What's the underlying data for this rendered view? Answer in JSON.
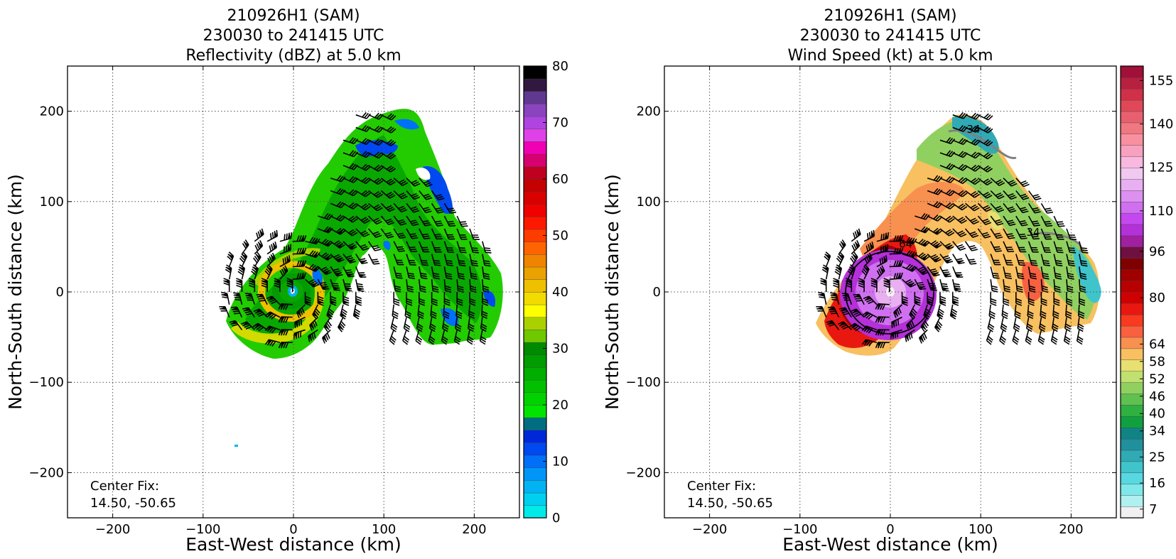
{
  "chart_data": [
    {
      "type": "heatmap",
      "title_lines": [
        "210926H1 (SAM)",
        "230030 to 241415 UTC",
        "Reflectivity (dBZ) at 5.0 km"
      ],
      "xlabel": "East-West distance (km)",
      "ylabel": "North-South distance (km)",
      "xlim": [
        -250,
        250
      ],
      "ylim": [
        -250,
        250
      ],
      "x_ticks": [
        -200,
        -100,
        0,
        100,
        200
      ],
      "y_ticks": [
        -200,
        -100,
        0,
        100,
        200
      ],
      "x_tick_labels": [
        "−200",
        "−100",
        "0",
        "100",
        "200"
      ],
      "y_tick_labels": [
        "−200",
        "−100",
        "0",
        "100",
        "200"
      ],
      "grid": true,
      "annotation_lines": [
        "Center Fix:",
        "14.50, -50.65"
      ],
      "colorbar": {
        "min": 0,
        "max": 80,
        "ticks": [
          0,
          10,
          20,
          30,
          40,
          50,
          60,
          70,
          80
        ],
        "tick_labels": [
          "0",
          "10",
          "20",
          "30",
          "40",
          "50",
          "60",
          "70",
          "80"
        ],
        "colors": [
          "#00eaea",
          "#00d0f0",
          "#00b4f4",
          "#0096f8",
          "#0070f8",
          "#0048f0",
          "#0028d8",
          "#006e80",
          "#00e400",
          "#00d200",
          "#00c000",
          "#00ae00",
          "#009c00",
          "#008a00",
          "#70c800",
          "#aad000",
          "#ffff00",
          "#f2dc00",
          "#eec000",
          "#eaa200",
          "#f08400",
          "#ff6400",
          "#ff3c00",
          "#ff1800",
          "#f00000",
          "#da0000",
          "#c40000",
          "#c00020",
          "#d80070",
          "#f000b4",
          "#e040e8",
          "#b044e0",
          "#8a44c0",
          "#603890",
          "#301840",
          "#000000"
        ]
      },
      "cells": [
        {
          "x": -70,
          "y": -35,
          "dbz": 24
        },
        {
          "x": -45,
          "y": -15,
          "dbz": 36
        },
        {
          "x": -30,
          "y": 10,
          "dbz": 33
        },
        {
          "x": 0,
          "y": 0,
          "dbz": 12
        },
        {
          "x": 25,
          "y": 40,
          "dbz": 24
        },
        {
          "x": 60,
          "y": 100,
          "dbz": 22
        },
        {
          "x": 80,
          "y": 150,
          "dbz": 24
        },
        {
          "x": 100,
          "y": 190,
          "dbz": 20
        },
        {
          "x": 130,
          "y": 80,
          "dbz": 22
        },
        {
          "x": 160,
          "y": 30,
          "dbz": 24
        },
        {
          "x": 200,
          "y": 0,
          "dbz": 22
        },
        {
          "x": -62,
          "y": -172,
          "dbz": 8
        }
      ]
    },
    {
      "type": "heatmap",
      "title_lines": [
        "210926H1 (SAM)",
        "230030 to 241415 UTC",
        "Wind Speed (kt) at 5.0 km"
      ],
      "xlabel": "East-West distance (km)",
      "ylabel": "North-South distance (km)",
      "xlim": [
        -250,
        250
      ],
      "ylim": [
        -250,
        250
      ],
      "x_ticks": [
        -200,
        -100,
        0,
        100,
        200
      ],
      "y_ticks": [
        -200,
        -100,
        0,
        100,
        200
      ],
      "x_tick_labels": [
        "−200",
        "−100",
        "0",
        "100",
        "200"
      ],
      "y_tick_labels": [
        "−200",
        "−100",
        "0",
        "100",
        "200"
      ],
      "grid": true,
      "annotation_lines": [
        "Center Fix:",
        "14.50, -50.65"
      ],
      "contour_labels": [
        {
          "x": 92,
          "y": 176,
          "text": "34"
        },
        {
          "x": 158,
          "y": 62,
          "text": "34"
        },
        {
          "x": 17,
          "y": 49,
          "text": "64"
        }
      ],
      "colorbar": {
        "min": 4,
        "max": 160,
        "ticks": [
          7,
          16,
          25,
          34,
          40,
          46,
          52,
          58,
          64,
          80,
          96,
          110,
          125,
          140,
          155
        ],
        "tick_labels": [
          "7",
          "16",
          "25",
          "34",
          "40",
          "46",
          "52",
          "58",
          "64",
          "80",
          "96",
          "110",
          "125",
          "140",
          "155"
        ],
        "colors": [
          "#f0f0f0",
          "#b0f0f0",
          "#80e8e8",
          "#58d8e0",
          "#40c4cc",
          "#30aab4",
          "#20909c",
          "#108484",
          "#10a040",
          "#30b040",
          "#60c050",
          "#90d060",
          "#c0e070",
          "#e8e070",
          "#f8c060",
          "#f89050",
          "#f86040",
          "#f83a20",
          "#e81810",
          "#d00000",
          "#b80000",
          "#a00000",
          "#800000",
          "#701040",
          "#a020a0",
          "#b430d8",
          "#c448f0",
          "#d070f0",
          "#dc90f0",
          "#e8b0f0",
          "#f0c8f0",
          "#f8b8e0",
          "#f8a0c0",
          "#f890a0",
          "#f07880",
          "#e86070",
          "#e04858",
          "#d03048",
          "#b82040",
          "#a01038"
        ]
      },
      "cells": [
        {
          "x": -70,
          "y": -40,
          "kt": 56
        },
        {
          "x": -10,
          "y": 0,
          "kt": 90
        },
        {
          "x": 0,
          "y": 0,
          "kt": 100
        },
        {
          "x": 20,
          "y": 75,
          "kt": 60
        },
        {
          "x": 60,
          "y": 130,
          "kt": 48
        },
        {
          "x": 100,
          "y": 180,
          "kt": 30
        },
        {
          "x": 150,
          "y": 70,
          "kt": 36
        },
        {
          "x": 200,
          "y": 20,
          "kt": 34
        }
      ]
    }
  ]
}
